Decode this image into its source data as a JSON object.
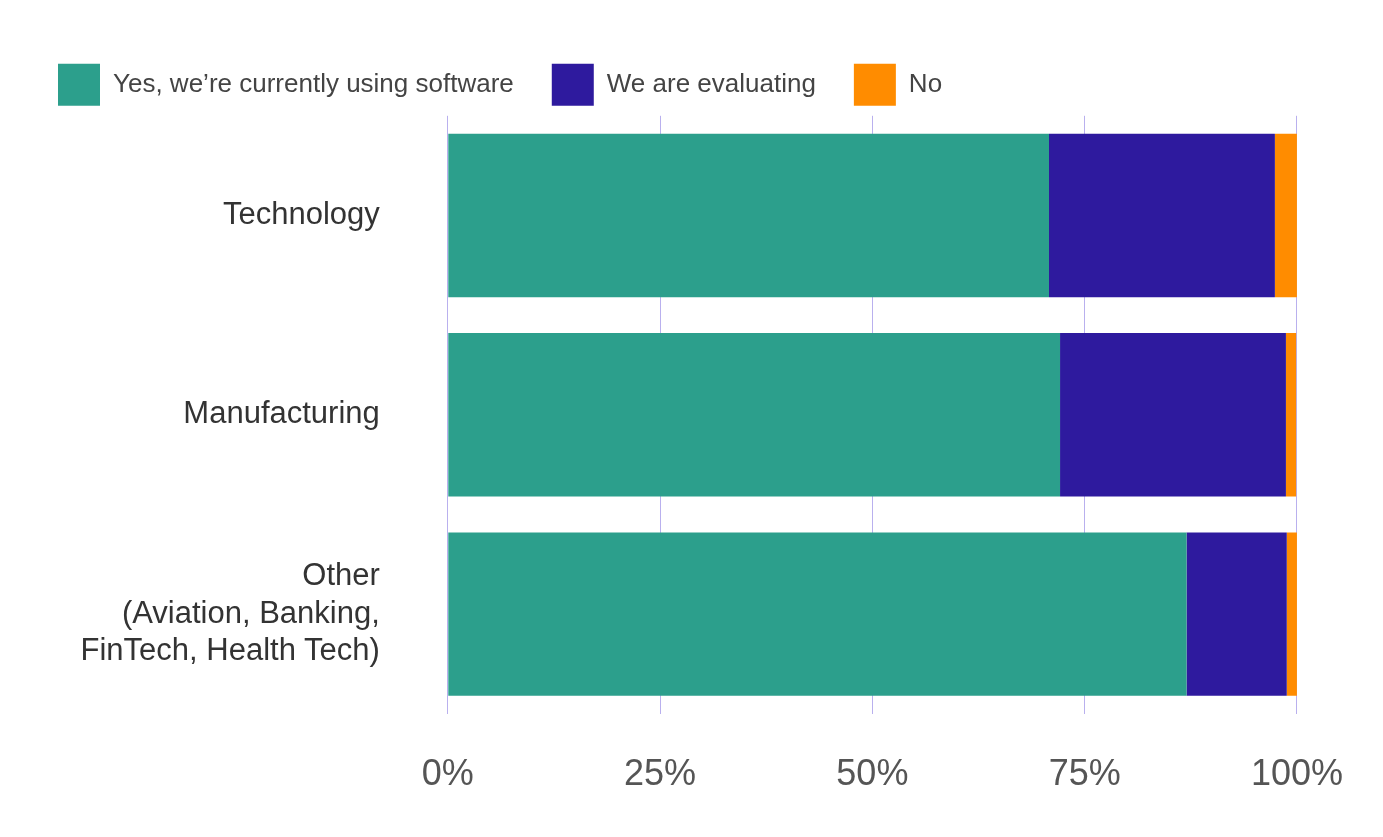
{
  "chart_data": {
    "type": "bar",
    "orientation": "horizontal",
    "stacked": true,
    "categories": [
      "Technology",
      "Manufacturing",
      "Other\n(Aviation, Banking,\nFinTech, Health Tech)"
    ],
    "series": [
      {
        "name": "Yes, we’re currently using software",
        "color": "#2c9f8c",
        "values": [
          70.8,
          72.1,
          87.0
        ]
      },
      {
        "name": "We are evaluating",
        "color": "#2e1a9e",
        "values": [
          26.6,
          26.6,
          11.8
        ]
      },
      {
        "name": "No",
        "color": "#ff8c00",
        "values": [
          2.6,
          1.2,
          1.2
        ]
      }
    ],
    "xlim": [
      0,
      100
    ],
    "xticks": [
      {
        "value": 0,
        "label": "0%"
      },
      {
        "value": 25,
        "label": "25%"
      },
      {
        "value": 50,
        "label": "50%"
      },
      {
        "value": 75,
        "label": "75%"
      },
      {
        "value": 100,
        "label": "100%"
      }
    ],
    "grid": "x",
    "legend": "top left"
  }
}
